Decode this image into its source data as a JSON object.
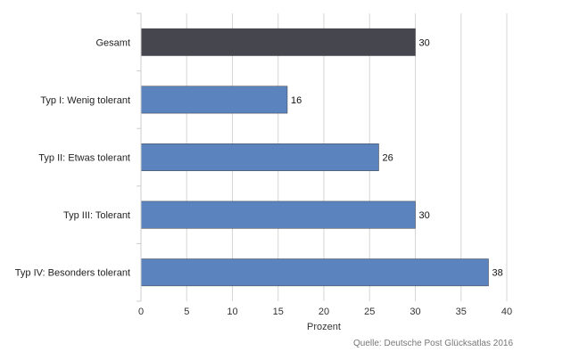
{
  "chart_data": {
    "type": "bar",
    "orientation": "horizontal",
    "categories": [
      "Gesamt",
      "Typ I: Wenig tolerant",
      "Typ II: Etwas tolerant",
      "Typ III: Tolerant",
      "Typ IV: Besonders tolerant"
    ],
    "values": [
      30,
      16,
      26,
      30,
      38
    ],
    "bar_colors": [
      "#46464e",
      "#5b83bd",
      "#5b83bd",
      "#5b83bd",
      "#5b83bd"
    ],
    "xlabel": "Prozent",
    "xlim": [
      0,
      40
    ],
    "xticks": [
      0,
      5,
      10,
      15,
      20,
      25,
      30,
      35,
      40
    ],
    "grid": "vertical",
    "data_labels": true
  },
  "source": "Quelle: Deutsche Post Glücksatlas 2016"
}
